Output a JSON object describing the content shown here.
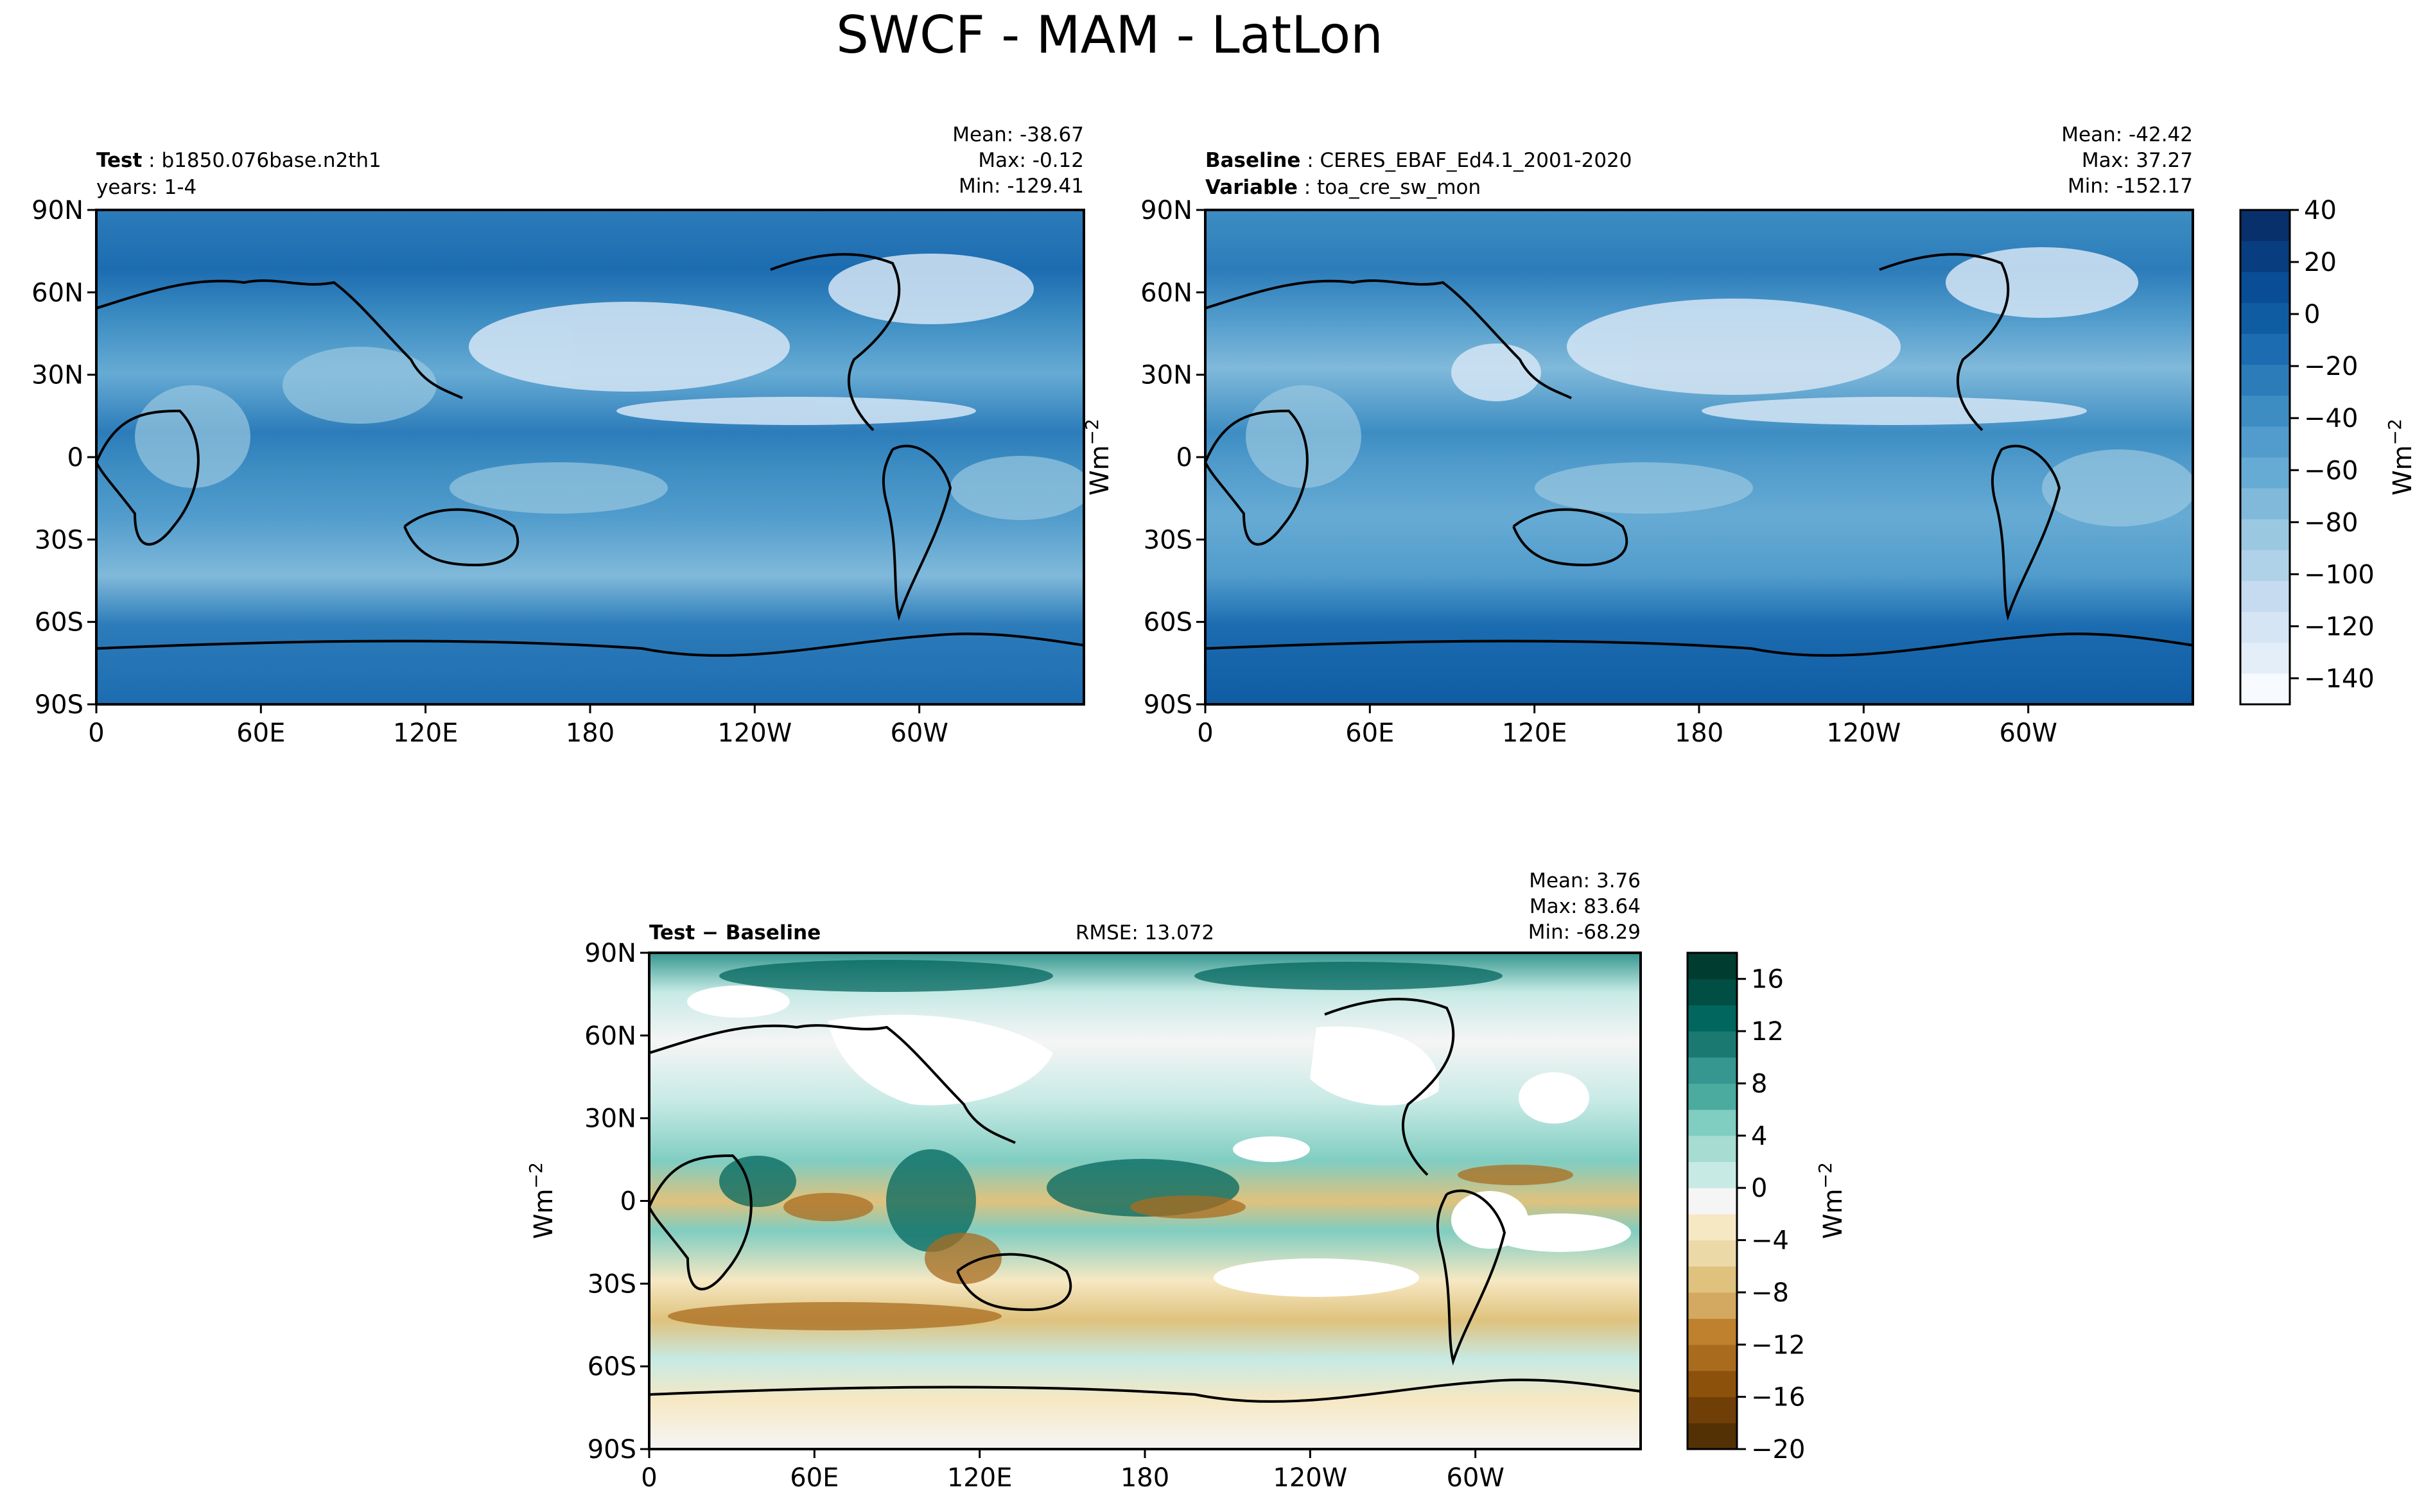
{
  "figure": {
    "title": "SWCF - MAM - LatLon"
  },
  "chart_data": [
    {
      "type": "heatmap",
      "panel": "test",
      "header_label": "Test",
      "header_value": "b1850.076base.n2th1",
      "subheader": "years: 1-4",
      "stats": {
        "mean": "Mean: -38.67",
        "max": "Max: -0.12",
        "min": "Min: -129.41"
      },
      "x_ticks": [
        "0",
        "60E",
        "120E",
        "180",
        "120W",
        "60W"
      ],
      "y_ticks": [
        "90N",
        "60N",
        "30N",
        "0",
        "30S",
        "60S",
        "90S"
      ],
      "xlim": [
        0,
        360
      ],
      "ylim": [
        -90,
        90
      ]
    },
    {
      "type": "heatmap",
      "panel": "baseline",
      "header_label": "Baseline",
      "header_value": "CERES_EBAF_Ed4.1_2001-2020",
      "subheader_label": "Variable",
      "subheader_value": "toa_cre_sw_mon",
      "stats": {
        "mean": "Mean: -42.42",
        "max": "Max: 37.27",
        "min": "Min: -152.17"
      },
      "x_ticks": [
        "0",
        "60E",
        "120E",
        "180",
        "120W",
        "60W"
      ],
      "y_ticks": [
        "90N",
        "60N",
        "30N",
        "0",
        "30S",
        "60S",
        "90S"
      ],
      "xlim": [
        0,
        360
      ],
      "ylim": [
        -90,
        90
      ]
    },
    {
      "type": "heatmap",
      "panel": "difference",
      "header_label": "Test − Baseline",
      "rmse": "RMSE: 13.072",
      "stats": {
        "mean": "Mean:  3.76",
        "max": "Max: 83.64",
        "min": "Min: -68.29"
      },
      "x_ticks": [
        "0",
        "60E",
        "120E",
        "180",
        "120W",
        "60W"
      ],
      "y_ticks": [
        "90N",
        "60N",
        "30N",
        "0",
        "30S",
        "60S",
        "90S"
      ],
      "xlim": [
        0,
        360
      ],
      "ylim": [
        -90,
        90
      ]
    }
  ],
  "colorbars": {
    "main": {
      "label": "Wm",
      "label_sup": "−2",
      "ticks": [
        "40",
        "20",
        "0",
        "−20",
        "−40",
        "−60",
        "−80",
        "−100",
        "−120",
        "−140"
      ],
      "tick_values": [
        40,
        20,
        0,
        -20,
        -40,
        -60,
        -80,
        -100,
        -120,
        -140
      ],
      "range": [
        -150,
        40
      ],
      "colors": [
        "#f7fbff",
        "#e4eef9",
        "#d5e5f4",
        "#c6dbef",
        "#b0d2e8",
        "#9ac8e0",
        "#80b9da",
        "#66abd4",
        "#519ccc",
        "#3d8dc3",
        "#2c7cba",
        "#1c6cb1",
        "#0f5ca3",
        "#084d96",
        "#083e80",
        "#08306b"
      ]
    },
    "diff": {
      "label": "Wm",
      "label_sup": "−2",
      "ticks": [
        "16",
        "12",
        "8",
        "4",
        "0",
        "−4",
        "−8",
        "−12",
        "−16",
        "−20"
      ],
      "tick_values": [
        16,
        12,
        8,
        4,
        0,
        -4,
        -8,
        -12,
        -16,
        -20
      ],
      "range": [
        -20,
        18
      ],
      "colors": [
        "#543005",
        "#6f3f07",
        "#8c510a",
        "#a96c1f",
        "#bf812d",
        "#d3a860",
        "#dfc27d",
        "#ecd9a8",
        "#f6e8c3",
        "#f5f5f5",
        "#c7eae5",
        "#a7dcd3",
        "#80cdc1",
        "#4cab9f",
        "#35978f",
        "#1a7a72",
        "#01665e",
        "#004e44",
        "#003c30"
      ]
    }
  },
  "axis_unit": {
    "label": "Wm",
    "sup": "−2"
  }
}
